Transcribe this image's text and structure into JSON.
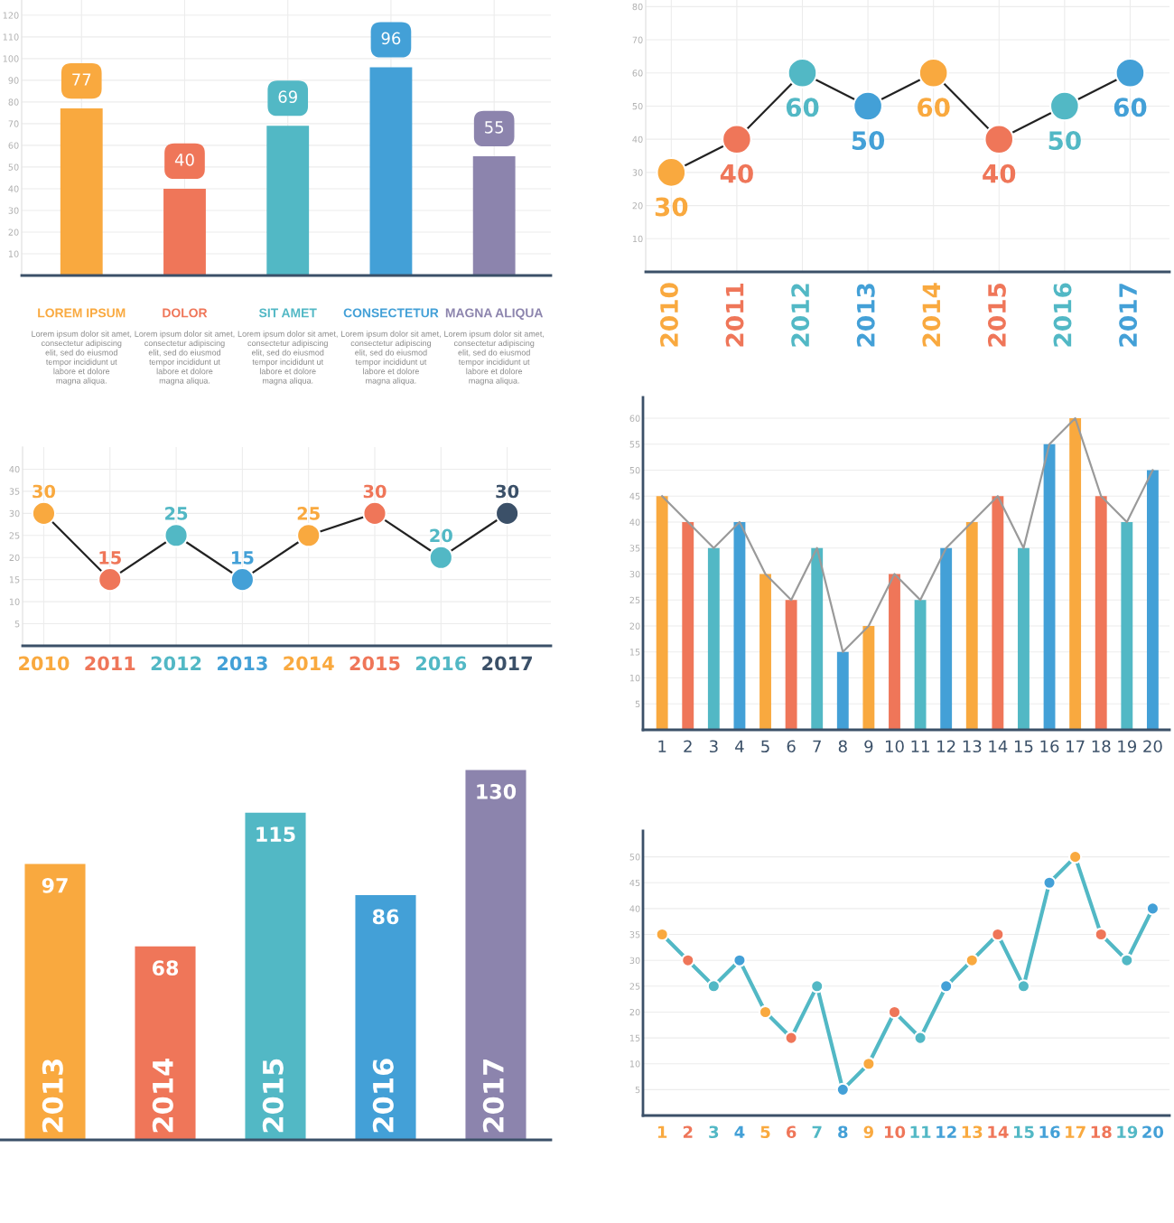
{
  "chart_data": [
    {
      "type": "bar",
      "categories": [
        "LOREM IPSUM",
        "DOLOR",
        "SIT AMET",
        "CONSECTETUR",
        "MAGNA ALIQUA"
      ],
      "series": [
        {
          "colors": [
            "#f9a93f",
            "#ef7659",
            "#52b8c5",
            "#43a0d7",
            "#8c84ad"
          ],
          "values": [
            77,
            40,
            69,
            96,
            55
          ]
        }
      ],
      "ylim": [
        0,
        127
      ],
      "yticks": [
        10,
        20,
        30,
        40,
        50,
        60,
        70,
        80,
        90,
        100,
        110,
        120
      ],
      "grid": true,
      "data_labels": true,
      "annotations": [
        "Lorem ipsum dolor sit amet,\nconsectetur adipiscing\nelit, sed do eiusmod\ntempor incididunt ut\nlabore et dolore\nmagna aliqua.",
        "Lorem ipsum dolor sit amet,\nconsectetur adipiscing\nelit, sed do eiusmod\ntempor incididunt ut\nlabore et dolore\nmagna aliqua.",
        "Lorem ipsum dolor sit amet,\nconsectetur adipiscing\nelit, sed do eiusmod\ntempor incididunt ut\nlabore et dolore\nmagna aliqua.",
        "Lorem ipsum dolor sit amet,\nconsectetur adipiscing\nelit, sed do eiusmod\ntempor incididunt ut\nlabore et dolore\nmagna aliqua.",
        "Lorem ipsum dolor sit amet,\nconsectetur adipiscing\nelit, sed do eiusmod\ntempor incididunt ut\nlabore et dolore\nmagna aliqua."
      ]
    },
    {
      "type": "line",
      "categories": [
        "2010",
        "2011",
        "2012",
        "2013",
        "2014",
        "2015",
        "2016",
        "2017"
      ],
      "series": [
        {
          "color": "#222222",
          "colors": [
            "#f9a93f",
            "#ef7659",
            "#52b8c5",
            "#43a0d7",
            "#f9a93f",
            "#ef7659",
            "#52b8c5",
            "#43a0d7"
          ],
          "values": [
            30,
            40,
            60,
            50,
            60,
            40,
            50,
            60
          ]
        }
      ],
      "ylim": [
        0,
        82
      ],
      "yticks": [
        10,
        20,
        30,
        40,
        50,
        60,
        70,
        80
      ],
      "grid": true,
      "data_labels": true,
      "marker": "circle"
    },
    {
      "type": "line",
      "categories": [
        "2010",
        "2011",
        "2012",
        "2013",
        "2014",
        "2015",
        "2016",
        "2017"
      ],
      "series": [
        {
          "color": "#222222",
          "colors": [
            "#f9a93f",
            "#ef7659",
            "#52b8c5",
            "#43a0d7",
            "#f9a93f",
            "#ef7659",
            "#52b8c5",
            "#3b5068"
          ],
          "values": [
            30,
            15,
            25,
            15,
            25,
            30,
            20,
            30
          ]
        }
      ],
      "ylim": [
        0,
        45
      ],
      "yticks": [
        5,
        10,
        15,
        20,
        25,
        30,
        35,
        40
      ],
      "grid": true,
      "data_labels": true,
      "marker": "circle"
    },
    {
      "type": "bar",
      "categories": [
        "1",
        "2",
        "3",
        "4",
        "5",
        "6",
        "7",
        "8",
        "9",
        "10",
        "11",
        "12",
        "13",
        "14",
        "15",
        "16",
        "17",
        "18",
        "19",
        "20"
      ],
      "series": [
        {
          "colors": [
            "#f9a93f",
            "#ef7659",
            "#52b8c5",
            "#43a0d7",
            "#f9a93f",
            "#ef7659",
            "#52b8c5",
            "#43a0d7",
            "#f9a93f",
            "#ef7659",
            "#52b8c5",
            "#43a0d7",
            "#f9a93f",
            "#ef7659",
            "#52b8c5",
            "#43a0d7",
            "#f9a93f",
            "#ef7659",
            "#52b8c5",
            "#43a0d7"
          ],
          "values": [
            45,
            40,
            35,
            40,
            30,
            25,
            35,
            15,
            20,
            30,
            25,
            35,
            40,
            45,
            35,
            55,
            60,
            45,
            40,
            50
          ]
        },
        {
          "type": "line",
          "color": "#9a9a9a",
          "values": [
            45,
            40,
            35,
            40,
            30,
            25,
            35,
            15,
            20,
            30,
            25,
            35,
            40,
            45,
            35,
            55,
            60,
            45,
            40,
            50
          ]
        }
      ],
      "ylim": [
        0,
        64
      ],
      "yticks": [
        5,
        10,
        15,
        20,
        25,
        30,
        35,
        40,
        45,
        50,
        55,
        60
      ],
      "grid": "y"
    },
    {
      "type": "bar",
      "categories": [
        "2013",
        "2014",
        "2015",
        "2016",
        "2017"
      ],
      "series": [
        {
          "colors": [
            "#f9a93f",
            "#ef7659",
            "#52b8c5",
            "#43a0d7",
            "#8c84ad"
          ],
          "values": [
            97,
            68,
            115,
            86,
            130
          ]
        }
      ],
      "data_labels": true,
      "tick_labels": "x"
    },
    {
      "type": "line",
      "categories": [
        "1",
        "2",
        "3",
        "4",
        "5",
        "6",
        "7",
        "8",
        "9",
        "10",
        "11",
        "12",
        "13",
        "14",
        "15",
        "16",
        "17",
        "18",
        "19",
        "20"
      ],
      "series": [
        {
          "color": "#52b8c5",
          "colors": [
            "#f9a93f",
            "#ef7659",
            "#52b8c5",
            "#43a0d7",
            "#f9a93f",
            "#ef7659",
            "#52b8c5",
            "#43a0d7",
            "#f9a93f",
            "#ef7659",
            "#52b8c5",
            "#43a0d7",
            "#f9a93f",
            "#ef7659",
            "#52b8c5",
            "#43a0d7",
            "#f9a93f",
            "#ef7659",
            "#52b8c5",
            "#43a0d7"
          ],
          "values": [
            35,
            30,
            25,
            30,
            20,
            15,
            25,
            5,
            10,
            20,
            15,
            25,
            30,
            35,
            25,
            45,
            50,
            35,
            30,
            40
          ]
        }
      ],
      "ylim": [
        0,
        55
      ],
      "yticks": [
        5,
        10,
        15,
        20,
        25,
        30,
        35,
        40,
        45,
        50
      ],
      "grid": "y",
      "marker": "circle"
    }
  ]
}
